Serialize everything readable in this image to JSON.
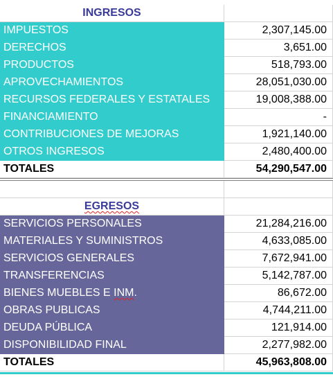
{
  "ingresos": {
    "header": "INGRESOS",
    "items": [
      {
        "label": "IMPUESTOS",
        "value": "2,307,145.00"
      },
      {
        "label": "DERECHOS",
        "value": "3,651.00"
      },
      {
        "label": "PRODUCTOS",
        "value": "518,793.00"
      },
      {
        "label": "APROVECHAMIENTOS",
        "value": "28,051,030.00"
      },
      {
        "label": "RECURSOS FEDERALES Y ESTATALES",
        "value": "19,008,388.00"
      },
      {
        "label": "FINANCIAMIENTO",
        "value": "-"
      },
      {
        "label": "CONTRIBUCIONES DE MEJORAS",
        "value": "1,921,140.00"
      },
      {
        "label": "OTROS INGRESOS",
        "value": "2,480,400.00"
      }
    ],
    "total_label": "TOTALES",
    "total_value": "54,290,547.00"
  },
  "egresos": {
    "header": "EGRESOS",
    "items": [
      {
        "label": "SERVICIOS PERSONALES",
        "value": "21,284,216.00"
      },
      {
        "label": "MATERIALES Y SUMINISTROS",
        "value": "4,633,085.00"
      },
      {
        "label": "SERVICIOS GENERALES",
        "value": "7,672,941.00"
      },
      {
        "label": "TRANSFERENCIAS",
        "value": "5,142,787.00"
      },
      {
        "label": "BIENES MUEBLES E INM.",
        "value": "86,672.00"
      },
      {
        "label": "OBRAS PUBLICAS",
        "value": "4,744,211.00"
      },
      {
        "label": "DEUDA PÚBLICA",
        "value": "121,914.00"
      },
      {
        "label": "DISPONIBILIDAD FINAL",
        "value": "2,277,982.00"
      }
    ],
    "total_label": "TOTALES",
    "total_value": "45,963,808.00"
  },
  "colors": {
    "ingresos_fill": "#33cccc",
    "egresos_fill": "#66669a",
    "header_text": "#3a3a9a"
  }
}
